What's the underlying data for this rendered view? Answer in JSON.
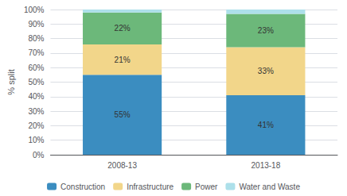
{
  "chart_data": {
    "type": "bar",
    "stacked": true,
    "categories": [
      "2008-13",
      "2013-18"
    ],
    "series": [
      {
        "name": "Construction",
        "color": "#3B8DC0",
        "values": [
          55,
          41
        ],
        "value_labels": [
          "55%",
          "41%"
        ]
      },
      {
        "name": "Infrastructure",
        "color": "#F2D68A",
        "values": [
          21,
          33
        ],
        "value_labels": [
          "21%",
          "33%"
        ]
      },
      {
        "name": "Power",
        "color": "#6CB87A",
        "values": [
          22,
          23
        ],
        "value_labels": [
          "22%",
          "23%"
        ]
      },
      {
        "name": "Water and Waste",
        "color": "#ADE0EA",
        "values": [
          2,
          3
        ]
      }
    ],
    "ylabel": "% split",
    "ylim": [
      0,
      100
    ],
    "yticks": [
      {
        "value": 0,
        "label": "0%"
      },
      {
        "value": 10,
        "label": "10%"
      },
      {
        "value": 20,
        "label": "20%"
      },
      {
        "value": 30,
        "label": "30%"
      },
      {
        "value": 40,
        "label": "40%"
      },
      {
        "value": 50,
        "label": "50%"
      },
      {
        "value": 60,
        "label": "60%"
      },
      {
        "value": 70,
        "label": "70%"
      },
      {
        "value": 80,
        "label": "80%"
      },
      {
        "value": 90,
        "label": "90%"
      },
      {
        "value": 100,
        "label": "100%"
      }
    ],
    "grid": true,
    "legend": "bottom",
    "data_labels": true
  }
}
